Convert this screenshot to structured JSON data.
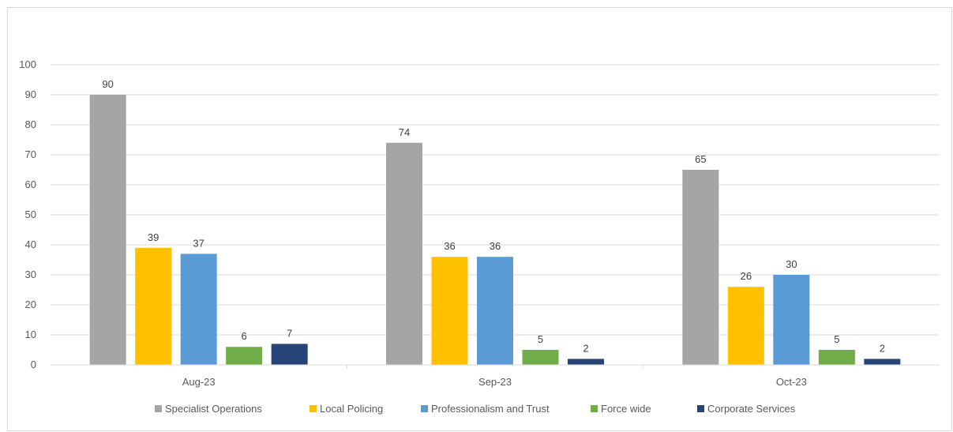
{
  "chart_data": {
    "type": "bar",
    "title": "",
    "xlabel": "",
    "ylabel": "",
    "categories": [
      "Aug-23",
      "Sep-23",
      "Oct-23"
    ],
    "ylim": [
      0,
      100
    ],
    "yticks": [
      0,
      10,
      20,
      30,
      40,
      50,
      60,
      70,
      80,
      90,
      100
    ],
    "grid": true,
    "legend_position": "bottom",
    "series": [
      {
        "name": "Specialist Operations",
        "color": "#a5a5a5",
        "values": [
          90,
          74,
          65
        ]
      },
      {
        "name": "Local Policing",
        "color": "#ffc000",
        "values": [
          39,
          36,
          26
        ]
      },
      {
        "name": "Professionalism and Trust",
        "color": "#5b9bd5",
        "values": [
          37,
          36,
          30
        ]
      },
      {
        "name": "Force wide",
        "color": "#70ad47",
        "values": [
          6,
          5,
          5
        ]
      },
      {
        "name": "Corporate Services",
        "color": "#264478",
        "values": [
          7,
          2,
          2
        ]
      }
    ]
  }
}
